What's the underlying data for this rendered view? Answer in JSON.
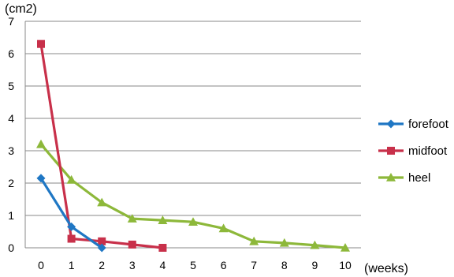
{
  "chart_data": {
    "type": "line",
    "title": "",
    "ylabel": "(cm2)",
    "xlabel": "(weeks)",
    "x": [
      0,
      1,
      2,
      3,
      4,
      5,
      6,
      7,
      8,
      9,
      10
    ],
    "ylim": [
      0,
      7
    ],
    "yticks": [
      0,
      1,
      2,
      3,
      4,
      5,
      6,
      7
    ],
    "grid": "horizontal",
    "legend_position": "right",
    "series": [
      {
        "name": "forefoot",
        "color": "#1f77c4",
        "marker": "diamond",
        "points": [
          [
            0,
            2.15
          ],
          [
            1,
            0.65
          ],
          [
            2,
            0.0
          ]
        ]
      },
      {
        "name": "midfoot",
        "color": "#c8304a",
        "marker": "square",
        "points": [
          [
            0,
            6.3
          ],
          [
            1,
            0.28
          ],
          [
            2,
            0.2
          ],
          [
            3,
            0.1
          ],
          [
            4,
            0.0
          ]
        ]
      },
      {
        "name": "heel",
        "color": "#8db83a",
        "marker": "triangle",
        "points": [
          [
            0,
            3.2
          ],
          [
            1,
            2.1
          ],
          [
            2,
            1.4
          ],
          [
            3,
            0.9
          ],
          [
            4,
            0.85
          ],
          [
            5,
            0.8
          ],
          [
            6,
            0.6
          ],
          [
            7,
            0.2
          ],
          [
            8,
            0.15
          ],
          [
            9,
            0.08
          ],
          [
            10,
            0.0
          ]
        ]
      }
    ]
  }
}
